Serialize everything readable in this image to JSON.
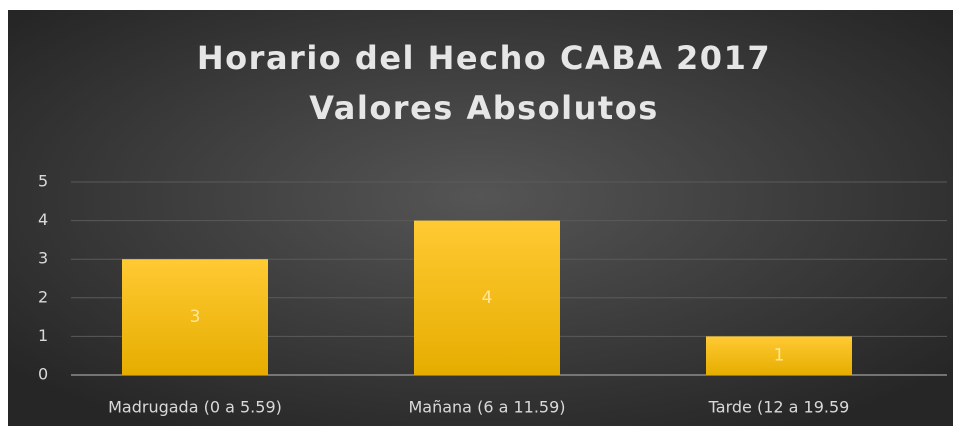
{
  "chart_data": {
    "type": "bar",
    "title": "Horario del Hecho CABA 2017",
    "subtitle": "Valores Absolutos",
    "categories": [
      "Madrugada (0 a 5.59)",
      "Mañana (6 a 11.59)",
      "Tarde (12 a 19.59"
    ],
    "values": [
      3,
      4,
      1
    ],
    "color": "#ffc000",
    "ylim": [
      0,
      5
    ],
    "yticks": [
      0,
      1,
      2,
      3,
      4,
      5
    ],
    "grid": true,
    "data_labels": true
  }
}
